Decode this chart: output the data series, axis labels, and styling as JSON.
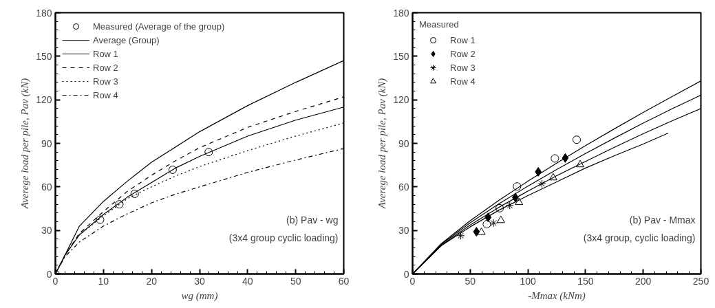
{
  "chart_data": [
    {
      "type": "line",
      "xlabel": "wg (mm)",
      "ylabel": "Averege load per pile, Pav (kN)",
      "xlim": [
        0,
        60
      ],
      "ylim": [
        0,
        180
      ],
      "xticks": [
        0,
        10,
        20,
        30,
        40,
        50,
        60
      ],
      "yticks": [
        0,
        30,
        60,
        90,
        120,
        150,
        180
      ],
      "grid": false,
      "legend": "top left",
      "annotations": [
        "(b) Pav - wg",
        "(3x4 group cyclic loading)"
      ],
      "series": [
        {
          "name": "Measured (Average of the group)",
          "type": "scatter",
          "marker": "circle",
          "color": "#000000",
          "x": [
            0,
            9.3,
            13.3,
            16.5,
            24.4,
            31.9
          ],
          "values": [
            0,
            37.4,
            48.0,
            55.2,
            71.8,
            84.0
          ]
        },
        {
          "name": "Average (Group)",
          "type": "line",
          "line_style": "solid",
          "color": "#000000",
          "x": [
            0,
            2,
            5,
            10,
            15,
            20,
            25,
            30,
            40,
            50,
            60
          ],
          "values": [
            0,
            13,
            27,
            41,
            53,
            63,
            73,
            81,
            95,
            106,
            115
          ]
        },
        {
          "name": "Row 1",
          "type": "line",
          "line_style": "solid",
          "color": "#000000",
          "x": [
            0,
            2,
            5,
            10,
            15,
            20,
            30,
            40,
            50,
            60
          ],
          "values": [
            0,
            13,
            33,
            50,
            64,
            77,
            98,
            116,
            132,
            147
          ]
        },
        {
          "name": "Row 2",
          "type": "line",
          "line_style": "dashed",
          "color": "#000000",
          "x": [
            0,
            2,
            5,
            10,
            15,
            20,
            25,
            30,
            40,
            50,
            60
          ],
          "values": [
            0,
            13,
            28,
            43,
            57,
            68,
            78,
            87,
            101,
            112,
            122
          ]
        },
        {
          "name": "Row 3",
          "type": "line",
          "line_style": "dotted",
          "color": "#000000",
          "x": [
            0,
            2,
            5,
            10,
            15,
            20,
            25,
            30,
            40,
            50,
            60
          ],
          "values": [
            0,
            13,
            27,
            40,
            52,
            60,
            67.5,
            74,
            85,
            95,
            104
          ]
        },
        {
          "name": "Row 4",
          "type": "line",
          "line_style": "dashdot",
          "color": "#000000",
          "x": [
            0,
            2,
            5,
            10,
            15,
            20,
            25,
            30,
            40,
            50,
            60
          ],
          "values": [
            0,
            12,
            22,
            33,
            41.5,
            49,
            55,
            60,
            70,
            78.5,
            86.4
          ]
        }
      ]
    },
    {
      "type": "line",
      "xlabel": "-Mmax (kNm)",
      "ylabel": "Averege load per pile, Pav (kN)",
      "xlim": [
        0,
        250
      ],
      "ylim": [
        0,
        180
      ],
      "xticks": [
        0,
        50,
        100,
        150,
        200,
        250
      ],
      "yticks": [
        0,
        30,
        60,
        90,
        120,
        150,
        180
      ],
      "grid": false,
      "legend": "top left",
      "legend_title": "Measured",
      "annotations": [
        "(b) Pav - Mmax",
        "(3x4 group, cyclic loading)"
      ],
      "series": [
        {
          "name": "Row 1",
          "type": "scatter",
          "marker": "circle",
          "color": "#000000",
          "x": [
            64.4,
            75.5,
            90.6,
            123.4,
            142.3
          ],
          "values": [
            34.3,
            45.3,
            60.3,
            79.6,
            92.5
          ]
        },
        {
          "name": "Row 2",
          "type": "scatter",
          "marker": "diamond",
          "color": "#000000",
          "x": [
            55.4,
            65.5,
            89.1,
            109.0,
            132.4
          ],
          "values": [
            29.1,
            39.0,
            52.7,
            70.4,
            79.9
          ]
        },
        {
          "name": "Row 3",
          "type": "scatter",
          "marker": "cross",
          "color": "#000000",
          "x": [
            41.8,
            70.2,
            84.3,
            112.2
          ],
          "values": [
            26.4,
            35.1,
            47.2,
            62.2
          ]
        },
        {
          "name": "Row 4",
          "type": "scatter",
          "marker": "triangle",
          "color": "#000000",
          "x": [
            59.7,
            76.6,
            92.3,
            121.9,
            145.3
          ],
          "values": [
            28.7,
            36.9,
            49.3,
            66.3,
            75.3
          ]
        },
        {
          "type": "line",
          "line_style": "solid",
          "color": "#000000",
          "x": [
            0,
            25,
            50,
            75,
            100,
            125,
            150,
            175,
            200,
            225,
            250
          ],
          "values": [
            0,
            21,
            36.7,
            50.8,
            63.9,
            76.4,
            88.5,
            100,
            111.3,
            122.2,
            133
          ]
        },
        {
          "type": "line",
          "line_style": "solid",
          "color": "#000000",
          "x": [
            0,
            25,
            50,
            75,
            100,
            125,
            150,
            175,
            200,
            225,
            250
          ],
          "values": [
            0,
            20.5,
            35.3,
            48.4,
            60.5,
            72,
            83,
            93.6,
            104,
            113.8,
            123.2
          ]
        },
        {
          "type": "line",
          "line_style": "solid",
          "color": "#000000",
          "x": [
            0,
            25,
            50,
            75,
            100,
            125,
            150,
            175,
            200,
            225,
            250
          ],
          "values": [
            0,
            19.9,
            33.8,
            46,
            57.1,
            67.7,
            77.6,
            87.3,
            96.6,
            105.5,
            114
          ]
        },
        {
          "type": "line",
          "line_style": "solid",
          "color": "#000000",
          "x": [
            0,
            25,
            50,
            75,
            100,
            125,
            150,
            175,
            200,
            221.5
          ],
          "values": [
            0,
            19.5,
            32.5,
            44,
            54,
            63.5,
            73,
            81.5,
            89.5,
            97
          ]
        }
      ]
    }
  ]
}
